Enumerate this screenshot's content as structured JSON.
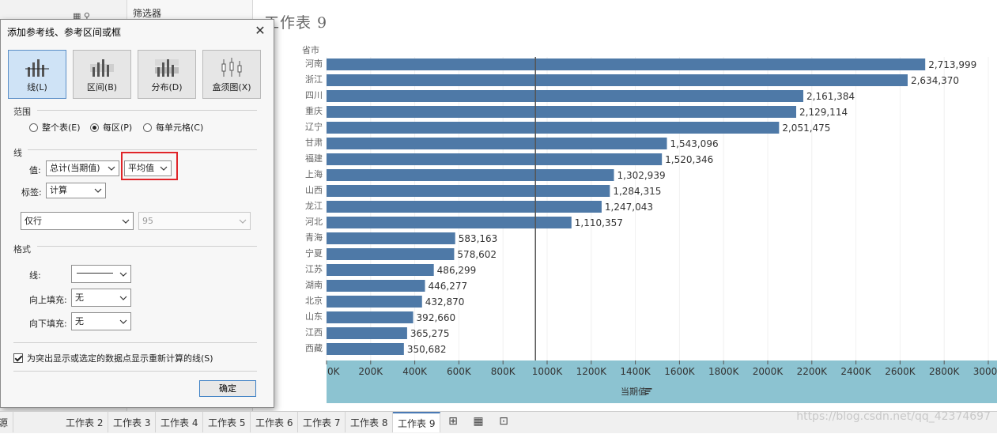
{
  "background": {
    "filter_label": "筛选器",
    "sheet_title": "工作表 9"
  },
  "dialog": {
    "title": "添加参考线、参考区间或框",
    "close_glyph": "✕",
    "types": [
      {
        "label": "线(L)",
        "active": true
      },
      {
        "label": "区间(B)",
        "active": false
      },
      {
        "label": "分布(D)",
        "active": false
      },
      {
        "label": "盒须图(X)",
        "active": false
      }
    ],
    "scope": {
      "heading": "范围",
      "options": [
        {
          "label": "整个表(E)",
          "selected": false
        },
        {
          "label": "每区(P)",
          "selected": true
        },
        {
          "label": "每单元格(C)",
          "selected": false
        }
      ]
    },
    "line": {
      "heading": "线",
      "value_label": "值:",
      "value_field": "总计(当期值)",
      "aggregation": "平均值",
      "tag_label": "标签:",
      "tag_value": "计算",
      "tooltip_select": "仅行",
      "confidence_value": "95"
    },
    "format": {
      "heading": "格式",
      "line_label": "线:",
      "fill_above_label": "向上填充:",
      "fill_above_value": "无",
      "fill_below_label": "向下填充:",
      "fill_below_value": "无"
    },
    "recalc_checkbox": {
      "label": "为突出显示或选定的数据点显示重新计算的线(S)",
      "checked": true
    },
    "ok_label": "确定"
  },
  "chart_data": {
    "type": "bar",
    "orientation": "horizontal",
    "row_header": "省市",
    "xlabel": "当期值",
    "categories": [
      "河南",
      "浙江",
      "四川",
      "重庆",
      "辽宁",
      "甘肃",
      "福建",
      "上海",
      "山西",
      "龙江",
      "河北",
      "青海",
      "宁夏",
      "江苏",
      "湖南",
      "北京",
      "山东",
      "江西",
      "西藏"
    ],
    "values": [
      2713999,
      2634370,
      2161384,
      2129114,
      2051475,
      1543096,
      1520346,
      1302939,
      1284315,
      1247043,
      1110357,
      583163,
      578602,
      486299,
      446277,
      432870,
      392660,
      365275,
      350682
    ],
    "value_labels": [
      "2,713,999",
      "2,634,370",
      "2,161,384",
      "2,129,114",
      "2,051,475",
      "1,543,096",
      "1,520,346",
      "1,302,939",
      "1,284,315",
      "1,247,043",
      "1,110,357",
      "583,163",
      "578,602",
      "486,299",
      "446,277",
      "432,870",
      "392,660",
      "365,275",
      "350,682"
    ],
    "xticks": [
      "0K",
      "200K",
      "400K",
      "600K",
      "800K",
      "1000K",
      "1200K",
      "1400K",
      "1600K",
      "1800K",
      "2000K",
      "2200K",
      "2400K",
      "2600K",
      "2800K",
      "3000K"
    ],
    "xlim": [
      0,
      3000000
    ],
    "reference_line": {
      "type": "average",
      "value": 947000
    },
    "colors": {
      "bar": "#4e79a7",
      "axis_band": "#8cc3d1",
      "ref_line": "#555555"
    }
  },
  "tabs": {
    "items": [
      {
        "label": "源",
        "active": false
      },
      {
        "label": "工作表 2",
        "active": false
      },
      {
        "label": "工作表 3",
        "active": false
      },
      {
        "label": "工作表 4",
        "active": false
      },
      {
        "label": "工作表 5",
        "active": false
      },
      {
        "label": "工作表 6",
        "active": false
      },
      {
        "label": "工作表 7",
        "active": false
      },
      {
        "label": "工作表 8",
        "active": false
      },
      {
        "label": "工作表 9",
        "active": true
      }
    ],
    "icons": [
      "new-worksheet-icon",
      "new-dashboard-icon",
      "new-story-icon"
    ]
  },
  "watermark": "https://blog.csdn.net/qq_42374697"
}
